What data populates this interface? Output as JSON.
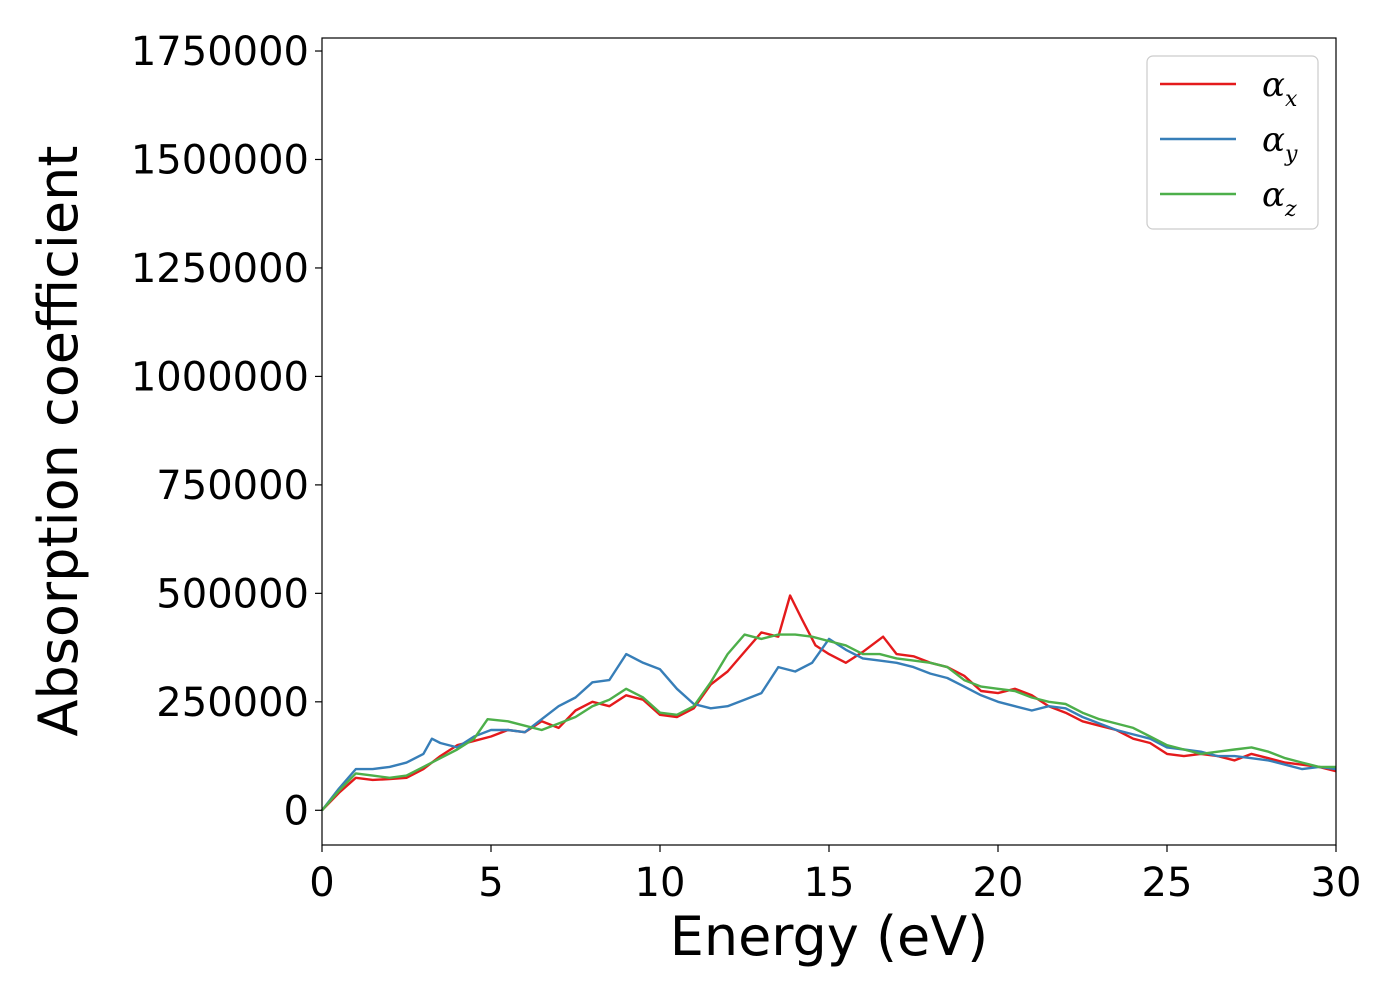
{
  "chart_data": {
    "type": "line",
    "xlabel": "Energy (eV)",
    "ylabel": "Absorption coefficient",
    "xlim": [
      0,
      30
    ],
    "ylim": [
      -80000,
      1780000
    ],
    "xticks": [
      0,
      5,
      10,
      15,
      20,
      25,
      30
    ],
    "yticks": [
      0,
      250000,
      500000,
      750000,
      1000000,
      1250000,
      1500000,
      1750000
    ],
    "grid": false,
    "legend_position": "top-right",
    "series": [
      {
        "name": "αx",
        "legend_base": "α",
        "legend_sub": "x",
        "color": "#e41a1c",
        "x": [
          0,
          0.5,
          1,
          1.5,
          2,
          2.5,
          3,
          3.5,
          4,
          4.5,
          5,
          5.5,
          6,
          6.5,
          7,
          7.5,
          8,
          8.5,
          9,
          9.5,
          10,
          10.5,
          11,
          11.5,
          12,
          12.5,
          13,
          13.5,
          13.85,
          14.2,
          14.6,
          15,
          15.5,
          16,
          16.6,
          17,
          17.5,
          18,
          18.5,
          19,
          19.5,
          20,
          20.5,
          21,
          21.5,
          22,
          22.5,
          23,
          23.5,
          24,
          24.5,
          25,
          25.5,
          26,
          26.5,
          27,
          27.5,
          28,
          28.5,
          29,
          29.5,
          30
        ],
        "y": [
          0,
          40000,
          75000,
          70000,
          72000,
          75000,
          95000,
          125000,
          150000,
          160000,
          170000,
          185000,
          180000,
          205000,
          190000,
          230000,
          250000,
          240000,
          265000,
          255000,
          220000,
          215000,
          235000,
          290000,
          320000,
          365000,
          410000,
          400000,
          495000,
          440000,
          380000,
          360000,
          340000,
          365000,
          400000,
          360000,
          355000,
          340000,
          330000,
          310000,
          275000,
          270000,
          280000,
          265000,
          240000,
          225000,
          205000,
          195000,
          185000,
          165000,
          155000,
          130000,
          125000,
          130000,
          125000,
          115000,
          130000,
          120000,
          110000,
          105000,
          100000,
          90000
        ]
      },
      {
        "name": "αy",
        "legend_base": "α",
        "legend_sub": "y",
        "color": "#377eb8",
        "x": [
          0,
          0.5,
          1,
          1.5,
          2,
          2.5,
          3,
          3.25,
          3.5,
          4,
          4.5,
          5,
          5.5,
          6,
          6.5,
          7,
          7.5,
          8,
          8.5,
          9,
          9.5,
          10,
          10.5,
          11,
          11.5,
          12,
          12.5,
          13,
          13.5,
          14,
          14.5,
          15,
          15.5,
          16,
          16.5,
          17,
          17.5,
          18,
          18.5,
          19,
          19.5,
          20,
          20.5,
          21,
          21.5,
          22,
          22.5,
          23,
          23.5,
          24,
          24.5,
          25,
          25.5,
          26,
          26.5,
          27,
          27.5,
          28,
          28.5,
          29,
          29.5,
          30
        ],
        "y": [
          0,
          50000,
          95000,
          95000,
          100000,
          110000,
          130000,
          165000,
          155000,
          145000,
          170000,
          185000,
          185000,
          180000,
          210000,
          240000,
          260000,
          295000,
          300000,
          360000,
          340000,
          325000,
          280000,
          245000,
          235000,
          240000,
          255000,
          270000,
          330000,
          320000,
          340000,
          395000,
          370000,
          350000,
          345000,
          340000,
          330000,
          315000,
          305000,
          285000,
          265000,
          250000,
          240000,
          230000,
          240000,
          235000,
          215000,
          200000,
          185000,
          175000,
          165000,
          145000,
          140000,
          135000,
          125000,
          125000,
          120000,
          115000,
          105000,
          95000,
          100000,
          95000
        ]
      },
      {
        "name": "αz",
        "legend_base": "α",
        "legend_sub": "z",
        "color": "#4daf4a",
        "x": [
          0,
          0.5,
          1,
          1.5,
          2,
          2.5,
          3,
          3.5,
          4,
          4.5,
          4.9,
          5.5,
          6,
          6.5,
          7,
          7.5,
          8,
          8.5,
          9,
          9.5,
          10,
          10.5,
          11,
          11.5,
          12,
          12.5,
          13,
          13.5,
          14,
          14.5,
          15,
          15.5,
          16,
          16.5,
          17,
          17.5,
          18,
          18.5,
          19,
          19.5,
          20,
          20.5,
          21,
          21.5,
          22,
          22.5,
          23,
          23.5,
          24,
          24.5,
          25,
          25.5,
          26,
          26.5,
          27,
          27.5,
          28,
          28.5,
          29,
          29.5,
          30
        ],
        "y": [
          0,
          45000,
          85000,
          80000,
          75000,
          80000,
          100000,
          120000,
          140000,
          165000,
          210000,
          205000,
          195000,
          185000,
          200000,
          215000,
          240000,
          255000,
          280000,
          260000,
          225000,
          220000,
          240000,
          295000,
          360000,
          405000,
          395000,
          405000,
          405000,
          400000,
          390000,
          380000,
          360000,
          360000,
          350000,
          345000,
          340000,
          330000,
          300000,
          285000,
          280000,
          275000,
          260000,
          250000,
          245000,
          225000,
          210000,
          200000,
          190000,
          170000,
          150000,
          140000,
          130000,
          135000,
          140000,
          145000,
          135000,
          120000,
          110000,
          100000,
          100000
        ]
      }
    ]
  }
}
